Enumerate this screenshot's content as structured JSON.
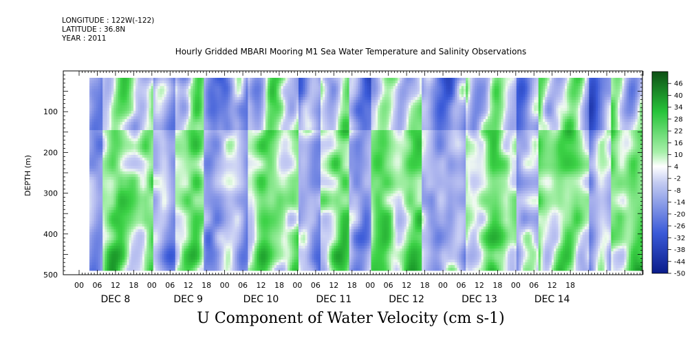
{
  "header": {
    "longitude": "LONGITUDE : 122W(-122)",
    "latitude": "LATITUDE : 36.8N",
    "year": "YEAR : 2011"
  },
  "colors": {
    "low": "#0a1c8a",
    "mid_low": "#b8c2ef",
    "white": "#ffffff",
    "mid_high": "#a5efa7",
    "high": "#0f5c17"
  },
  "chart_data": {
    "type": "heatmap",
    "title": "Hourly Gridded MBARI Mooring M1 Sea Water Temperature and Salinity Observations",
    "bottom_title": "U Component of Water Velocity (cm s-1)",
    "ylabel": "DEPTH (m)",
    "ylim": [
      500,
      0
    ],
    "yticks": [
      "100",
      "200",
      "300",
      "400",
      "500"
    ],
    "x_hour_ticks": [
      "00",
      "06",
      "12",
      "18",
      "00",
      "06",
      "12",
      "18",
      "00",
      "06",
      "12",
      "18",
      "00",
      "06",
      "12",
      "18",
      "00",
      "06",
      "12",
      "18",
      "00",
      "06",
      "12",
      "18",
      "00",
      "06",
      "12",
      "18"
    ],
    "x_day_labels": [
      "DEC  8",
      "DEC  9",
      "DEC 10",
      "DEC 11",
      "DEC 12",
      "DEC 13",
      "DEC 14"
    ],
    "colorbar_levels": [
      "46",
      "40",
      "34",
      "28",
      "22",
      "16",
      "10",
      "4",
      "-2",
      "-8",
      "-14",
      "-20",
      "-26",
      "-32",
      "-38",
      "-44",
      "-50"
    ],
    "colorbar_range": [
      -50,
      52
    ],
    "dominant_sign_by_day": [
      {
        "day": "DEC  8",
        "early": "negative",
        "mid": "positive",
        "late": "positive"
      },
      {
        "day": "DEC  9",
        "early": "negative",
        "mid": "positive",
        "late": "negative"
      },
      {
        "day": "DEC 10",
        "early": "negative",
        "mid": "positive",
        "late": "positive"
      },
      {
        "day": "DEC 11",
        "early": "negative",
        "mid": "positive",
        "late": "negative"
      },
      {
        "day": "DEC 12",
        "early": "positive",
        "mid": "positive",
        "late": "negative"
      },
      {
        "day": "DEC 13",
        "early": "negative",
        "mid": "positive",
        "late": "positive"
      },
      {
        "day": "DEC 14",
        "early": "negative",
        "mid": "positive",
        "late": "positive"
      }
    ]
  }
}
